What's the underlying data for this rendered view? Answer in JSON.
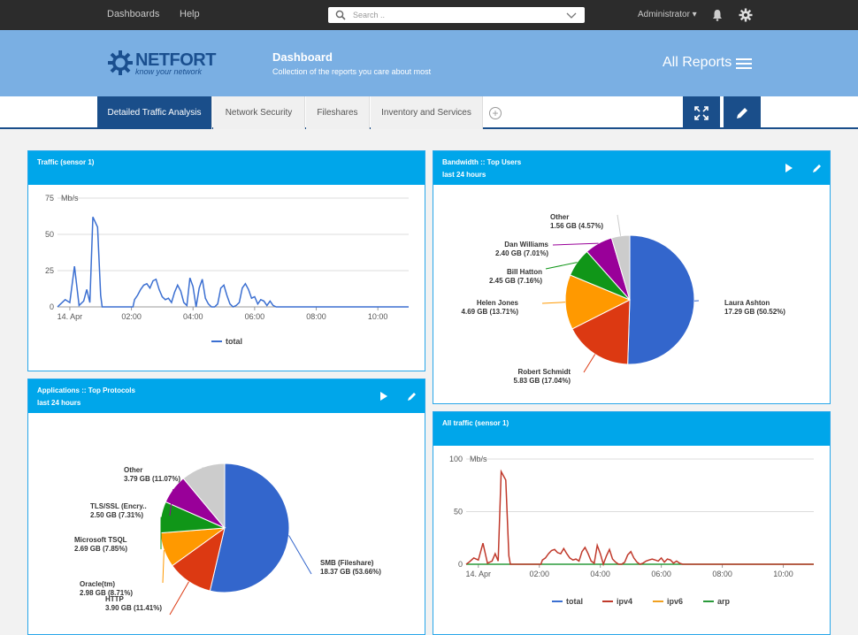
{
  "topbar": {
    "dashboards": "Dashboards",
    "help": "Help",
    "search_placeholder": "Search ..",
    "user": "Administrator"
  },
  "banner": {
    "logo": "NETFORT",
    "tagline": "know your network",
    "title": "Dashboard",
    "subtitle": "Collection of the reports you care about most",
    "all_reports": "All Reports"
  },
  "tabs": [
    {
      "label": "Detailed Traffic Analysis",
      "active": true
    },
    {
      "label": "Network Security"
    },
    {
      "label": "Fileshares"
    },
    {
      "label": "Inventory and Services"
    }
  ],
  "panels": {
    "traffic": {
      "title": "Traffic (sensor 1)"
    },
    "bandwidth": {
      "title": "Bandwidth :: Top Users",
      "subtitle": "last 24 hours"
    },
    "applications": {
      "title": "Applications :: Top Protocols",
      "subtitle": "last 24 hours"
    },
    "alltraffic": {
      "title": "All traffic (sensor 1)"
    }
  },
  "chart_data": [
    {
      "type": "line",
      "title": "Traffic (sensor 1)",
      "ylabel": "Mb/s",
      "yticks": [
        "75",
        "50",
        "25",
        "0"
      ],
      "xticks": [
        "14. Apr",
        "02:00",
        "04:00",
        "06:00",
        "08:00",
        "10:00"
      ],
      "ylim": [
        0,
        75
      ],
      "series": [
        {
          "name": "total",
          "color": "#3b6fd1"
        }
      ],
      "x_hours": [
        -0.4,
        -0.3,
        -0.15,
        0,
        0.15,
        0.3,
        0.45,
        0.55,
        0.65,
        0.75,
        0.9,
        1.0,
        1.05,
        1.15,
        1.3,
        1.5,
        1.7,
        1.9,
        2.05,
        2.1,
        2.2,
        2.3,
        2.4,
        2.5,
        2.6,
        2.7,
        2.8,
        2.9,
        3.0,
        3.1,
        3.2,
        3.3,
        3.4,
        3.5,
        3.6,
        3.7,
        3.8,
        3.9,
        4.0,
        4.1,
        4.2,
        4.3,
        4.4,
        4.5,
        4.6,
        4.7,
        4.8,
        4.9,
        5.0,
        5.1,
        5.2,
        5.3,
        5.4,
        5.5,
        5.6,
        5.7,
        5.8,
        5.9,
        6.0,
        6.1,
        6.2,
        6.3,
        6.4,
        6.5,
        6.6,
        6.7,
        6.8,
        6.9,
        7.0,
        7.1,
        7.5,
        8.5,
        9.5,
        10.5,
        11.0
      ],
      "values": [
        0,
        2,
        5,
        3,
        28,
        1,
        4,
        12,
        3,
        62,
        55,
        8,
        0,
        0,
        0,
        0,
        0,
        0,
        0,
        5,
        8,
        12,
        15,
        16,
        13,
        18,
        19,
        12,
        7,
        5,
        6,
        3,
        10,
        15,
        11,
        3,
        1,
        20,
        14,
        0,
        13,
        19,
        6,
        2,
        0,
        0,
        2,
        13,
        15,
        8,
        2,
        0,
        1,
        3,
        13,
        16,
        12,
        6,
        7,
        2,
        5,
        4,
        1,
        4,
        1,
        0,
        0,
        0,
        0,
        0,
        0,
        0,
        0,
        0,
        0
      ]
    },
    {
      "type": "pie",
      "title": "Bandwidth :: Top Users",
      "slices": [
        {
          "label": "Laura Ashton",
          "value": "17.29 GB (50.52%)",
          "pct": 50.52,
          "color": "#3366cc"
        },
        {
          "label": "Robert Schmidt",
          "value": "5.83 GB (17.04%)",
          "pct": 17.04,
          "color": "#dc3912"
        },
        {
          "label": "Helen Jones",
          "value": "4.69 GB (13.71%)",
          "pct": 13.71,
          "color": "#ff9900"
        },
        {
          "label": "Bill Hatton",
          "value": "2.45 GB (7.16%)",
          "pct": 7.16,
          "color": "#109618"
        },
        {
          "label": "Dan Williams",
          "value": "2.40 GB (7.01%)",
          "pct": 7.01,
          "color": "#990099"
        },
        {
          "label": "Other",
          "value": "1.56 GB (4.57%)",
          "pct": 4.57,
          "color": "#cccccc"
        }
      ]
    },
    {
      "type": "pie",
      "title": "Applications :: Top Protocols",
      "slices": [
        {
          "label": "SMB (Fileshare)",
          "value": "18.37 GB (53.66%)",
          "pct": 53.66,
          "color": "#3366cc"
        },
        {
          "label": "HTTP",
          "value": "3.90 GB (11.41%)",
          "pct": 11.41,
          "color": "#dc3912"
        },
        {
          "label": "Oracle(tm)",
          "value": "2.98 GB (8.71%)",
          "pct": 8.71,
          "color": "#ff9900"
        },
        {
          "label": "Microsoft TSQL",
          "value": "2.69 GB (7.85%)",
          "pct": 7.85,
          "color": "#109618"
        },
        {
          "label": "TLS/SSL (Encry..",
          "value": "2.50 GB (7.31%)",
          "pct": 7.31,
          "color": "#990099"
        },
        {
          "label": "Other",
          "value": "3.79 GB (11.07%)",
          "pct": 11.07,
          "color": "#cccccc"
        }
      ]
    },
    {
      "type": "line",
      "title": "All traffic (sensor 1)",
      "ylabel": "Mb/s",
      "yticks": [
        "100",
        "50",
        "0"
      ],
      "xticks": [
        "14. Apr",
        "02:00",
        "04:00",
        "06:00",
        "08:00",
        "10:00"
      ],
      "ylim": [
        0,
        100
      ],
      "series": [
        {
          "name": "total",
          "color": "#3b6fd1"
        },
        {
          "name": "ipv4",
          "color": "#c0392b"
        },
        {
          "name": "ipv6",
          "color": "#f0a020"
        },
        {
          "name": "arp",
          "color": "#2a9a3a"
        }
      ],
      "x_hours": [
        -0.4,
        -0.3,
        -0.15,
        0,
        0.15,
        0.3,
        0.45,
        0.55,
        0.65,
        0.75,
        0.9,
        1.0,
        1.05,
        1.15,
        1.3,
        1.5,
        1.7,
        1.9,
        2.05,
        2.1,
        2.2,
        2.3,
        2.4,
        2.5,
        2.6,
        2.7,
        2.8,
        2.9,
        3.0,
        3.1,
        3.2,
        3.3,
        3.4,
        3.5,
        3.6,
        3.7,
        3.8,
        3.9,
        4.0,
        4.1,
        4.2,
        4.3,
        4.4,
        4.5,
        4.6,
        4.7,
        4.8,
        4.9,
        5.0,
        5.1,
        5.2,
        5.3,
        5.4,
        5.5,
        5.6,
        5.7,
        5.8,
        5.9,
        6.0,
        6.1,
        6.2,
        6.3,
        6.4,
        6.5,
        6.6,
        6.7,
        6.8,
        6.9,
        7.0,
        7.1,
        7.5,
        8.5,
        9.5,
        10.5,
        11.0
      ],
      "ipv4": [
        0,
        2,
        6,
        4,
        20,
        1,
        3,
        10,
        3,
        88,
        80,
        8,
        0,
        0,
        0,
        0,
        0,
        0,
        0,
        4,
        6,
        10,
        13,
        14,
        11,
        10,
        15,
        10,
        6,
        4,
        5,
        3,
        12,
        16,
        10,
        3,
        1,
        18,
        10,
        0,
        8,
        14,
        5,
        2,
        0,
        0,
        2,
        9,
        12,
        6,
        2,
        0,
        1,
        3,
        4,
        5,
        4,
        3,
        6,
        2,
        5,
        4,
        1,
        3,
        1,
        0,
        0,
        0,
        0,
        0,
        0,
        0,
        0,
        0,
        0
      ]
    }
  ]
}
